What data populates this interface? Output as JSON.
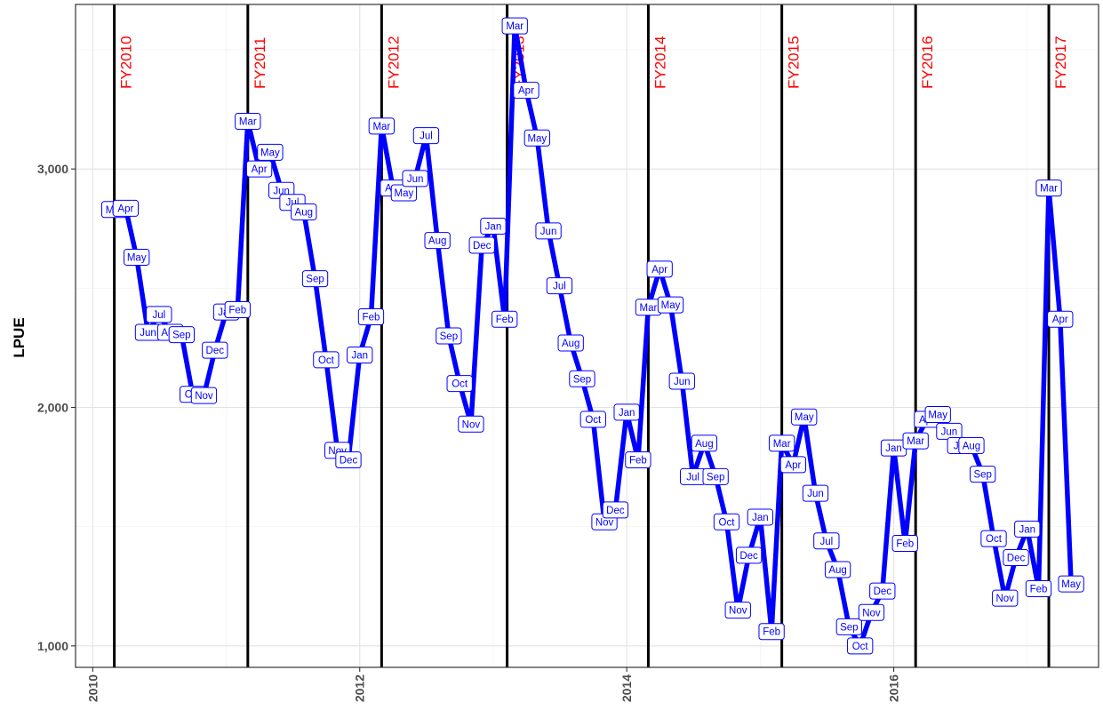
{
  "chart_data": {
    "type": "line",
    "title": "",
    "xlabel": "",
    "ylabel": "LPUE",
    "xlim": [
      "2009-11-15",
      "2017-07-15"
    ],
    "ylim": [
      910,
      3690
    ],
    "x_ticks": [
      "2010",
      "2012",
      "2014",
      "2016"
    ],
    "y_ticks": [
      "1,000",
      "2,000",
      "3,000"
    ],
    "grid": true,
    "colors": {
      "series": "#0000ff",
      "fiscal_year_line": "#000000",
      "fiscal_year_label": "#ff0000",
      "label_box": "#ffffff"
    },
    "fiscal_years": [
      {
        "date": "2010-03-01",
        "label": "FY2010"
      },
      {
        "date": "2011-03-01",
        "label": "FY2011"
      },
      {
        "date": "2012-03-01",
        "label": "FY2012"
      },
      {
        "date": "2013-02-08",
        "label": "FY2013"
      },
      {
        "date": "2014-03-01",
        "label": "FY2014"
      },
      {
        "date": "2015-03-01",
        "label": "FY2015"
      },
      {
        "date": "2016-03-01",
        "label": "FY2016"
      },
      {
        "date": "2017-03-01",
        "label": "FY2017"
      }
    ],
    "series": [
      {
        "points": [
          {
            "x": "2010-03-01",
            "y": 2830,
            "label": "Mar"
          },
          {
            "x": "2010-04-01",
            "y": 2835,
            "label": "Apr"
          },
          {
            "x": "2010-05-01",
            "y": 2630,
            "label": "May"
          },
          {
            "x": "2010-06-01",
            "y": 2315,
            "label": "Jun"
          },
          {
            "x": "2010-07-01",
            "y": 2390,
            "label": "Jul"
          },
          {
            "x": "2010-08-01",
            "y": 2315,
            "label": "Aug"
          },
          {
            "x": "2010-09-01",
            "y": 2305,
            "label": "Sep"
          },
          {
            "x": "2010-10-01",
            "y": 2055,
            "label": "Oct"
          },
          {
            "x": "2010-11-01",
            "y": 2050,
            "label": "Nov"
          },
          {
            "x": "2010-12-01",
            "y": 2240,
            "label": "Dec"
          },
          {
            "x": "2011-01-01",
            "y": 2400,
            "label": "Jan"
          },
          {
            "x": "2011-02-01",
            "y": 2410,
            "label": "Feb"
          },
          {
            "x": "2011-03-01",
            "y": 3200,
            "label": "Mar"
          },
          {
            "x": "2011-04-01",
            "y": 3000,
            "label": "Apr"
          },
          {
            "x": "2011-05-01",
            "y": 3070,
            "label": "May"
          },
          {
            "x": "2011-06-01",
            "y": 2910,
            "label": "Jun"
          },
          {
            "x": "2011-07-01",
            "y": 2860,
            "label": "Jul"
          },
          {
            "x": "2011-08-01",
            "y": 2820,
            "label": "Aug"
          },
          {
            "x": "2011-09-01",
            "y": 2540,
            "label": "Sep"
          },
          {
            "x": "2011-10-01",
            "y": 2200,
            "label": "Oct"
          },
          {
            "x": "2011-11-01",
            "y": 1820,
            "label": "Nov"
          },
          {
            "x": "2011-12-01",
            "y": 1780,
            "label": "Dec"
          },
          {
            "x": "2012-01-01",
            "y": 2220,
            "label": "Jan"
          },
          {
            "x": "2012-02-01",
            "y": 2380,
            "label": "Feb"
          },
          {
            "x": "2012-03-01",
            "y": 3180,
            "label": "Mar"
          },
          {
            "x": "2012-04-01",
            "y": 2920,
            "label": "Apr"
          },
          {
            "x": "2012-05-01",
            "y": 2900,
            "label": "May"
          },
          {
            "x": "2012-06-01",
            "y": 2960,
            "label": "Jun"
          },
          {
            "x": "2012-07-01",
            "y": 3140,
            "label": "Jul"
          },
          {
            "x": "2012-08-01",
            "y": 2700,
            "label": "Aug"
          },
          {
            "x": "2012-09-01",
            "y": 2300,
            "label": "Sep"
          },
          {
            "x": "2012-10-01",
            "y": 2100,
            "label": "Oct"
          },
          {
            "x": "2012-11-01",
            "y": 1930,
            "label": "Nov"
          },
          {
            "x": "2012-12-01",
            "y": 2680,
            "label": "Dec"
          },
          {
            "x": "2013-01-01",
            "y": 2760,
            "label": "Jan"
          },
          {
            "x": "2013-02-01",
            "y": 2370,
            "label": "Feb"
          },
          {
            "x": "2013-03-01",
            "y": 3600,
            "label": "Mar"
          },
          {
            "x": "2013-04-01",
            "y": 3330,
            "label": "Apr"
          },
          {
            "x": "2013-05-01",
            "y": 3130,
            "label": "May"
          },
          {
            "x": "2013-06-01",
            "y": 2740,
            "label": "Jun"
          },
          {
            "x": "2013-07-01",
            "y": 2510,
            "label": "Jul"
          },
          {
            "x": "2013-08-01",
            "y": 2270,
            "label": "Aug"
          },
          {
            "x": "2013-09-01",
            "y": 2120,
            "label": "Sep"
          },
          {
            "x": "2013-10-01",
            "y": 1950,
            "label": "Oct"
          },
          {
            "x": "2013-11-01",
            "y": 1520,
            "label": "Nov"
          },
          {
            "x": "2013-12-01",
            "y": 1570,
            "label": "Dec"
          },
          {
            "x": "2014-01-01",
            "y": 1980,
            "label": "Jan"
          },
          {
            "x": "2014-02-01",
            "y": 1780,
            "label": "Feb"
          },
          {
            "x": "2014-03-01",
            "y": 2420,
            "label": "Mar"
          },
          {
            "x": "2014-04-01",
            "y": 2580,
            "label": "Apr"
          },
          {
            "x": "2014-05-01",
            "y": 2430,
            "label": "May"
          },
          {
            "x": "2014-06-01",
            "y": 2110,
            "label": "Jun"
          },
          {
            "x": "2014-07-01",
            "y": 1710,
            "label": "Jul"
          },
          {
            "x": "2014-08-01",
            "y": 1850,
            "label": "Aug"
          },
          {
            "x": "2014-09-01",
            "y": 1710,
            "label": "Sep"
          },
          {
            "x": "2014-10-01",
            "y": 1520,
            "label": "Oct"
          },
          {
            "x": "2014-11-01",
            "y": 1150,
            "label": "Nov"
          },
          {
            "x": "2014-12-01",
            "y": 1380,
            "label": "Dec"
          },
          {
            "x": "2015-01-01",
            "y": 1540,
            "label": "Jan"
          },
          {
            "x": "2015-02-01",
            "y": 1060,
            "label": "Feb"
          },
          {
            "x": "2015-03-01",
            "y": 1850,
            "label": "Mar"
          },
          {
            "x": "2015-04-01",
            "y": 1760,
            "label": "Apr"
          },
          {
            "x": "2015-05-01",
            "y": 1960,
            "label": "May"
          },
          {
            "x": "2015-06-01",
            "y": 1640,
            "label": "Jun"
          },
          {
            "x": "2015-07-01",
            "y": 1440,
            "label": "Jul"
          },
          {
            "x": "2015-08-01",
            "y": 1320,
            "label": "Aug"
          },
          {
            "x": "2015-09-01",
            "y": 1080,
            "label": "Sep"
          },
          {
            "x": "2015-10-01",
            "y": 1000,
            "label": "Oct"
          },
          {
            "x": "2015-11-01",
            "y": 1140,
            "label": "Nov"
          },
          {
            "x": "2015-12-01",
            "y": 1230,
            "label": "Dec"
          },
          {
            "x": "2016-01-01",
            "y": 1830,
            "label": "Jan"
          },
          {
            "x": "2016-02-01",
            "y": 1430,
            "label": "Feb"
          },
          {
            "x": "2016-03-01",
            "y": 1860,
            "label": "Mar"
          },
          {
            "x": "2016-04-01",
            "y": 1950,
            "label": "Apr"
          },
          {
            "x": "2016-05-01",
            "y": 1970,
            "label": "May"
          },
          {
            "x": "2016-06-01",
            "y": 1900,
            "label": "Jun"
          },
          {
            "x": "2016-07-01",
            "y": 1840,
            "label": "Jul"
          },
          {
            "x": "2016-08-01",
            "y": 1840,
            "label": "Aug"
          },
          {
            "x": "2016-09-01",
            "y": 1720,
            "label": "Sep"
          },
          {
            "x": "2016-10-01",
            "y": 1450,
            "label": "Oct"
          },
          {
            "x": "2016-11-01",
            "y": 1200,
            "label": "Nov"
          },
          {
            "x": "2016-12-01",
            "y": 1370,
            "label": "Dec"
          },
          {
            "x": "2017-01-01",
            "y": 1490,
            "label": "Jan"
          },
          {
            "x": "2017-02-01",
            "y": 1240,
            "label": "Feb"
          },
          {
            "x": "2017-03-01",
            "y": 2920,
            "label": "Mar"
          },
          {
            "x": "2017-04-01",
            "y": 2370,
            "label": "Apr"
          },
          {
            "x": "2017-05-01",
            "y": 1260,
            "label": "May"
          }
        ]
      }
    ]
  }
}
